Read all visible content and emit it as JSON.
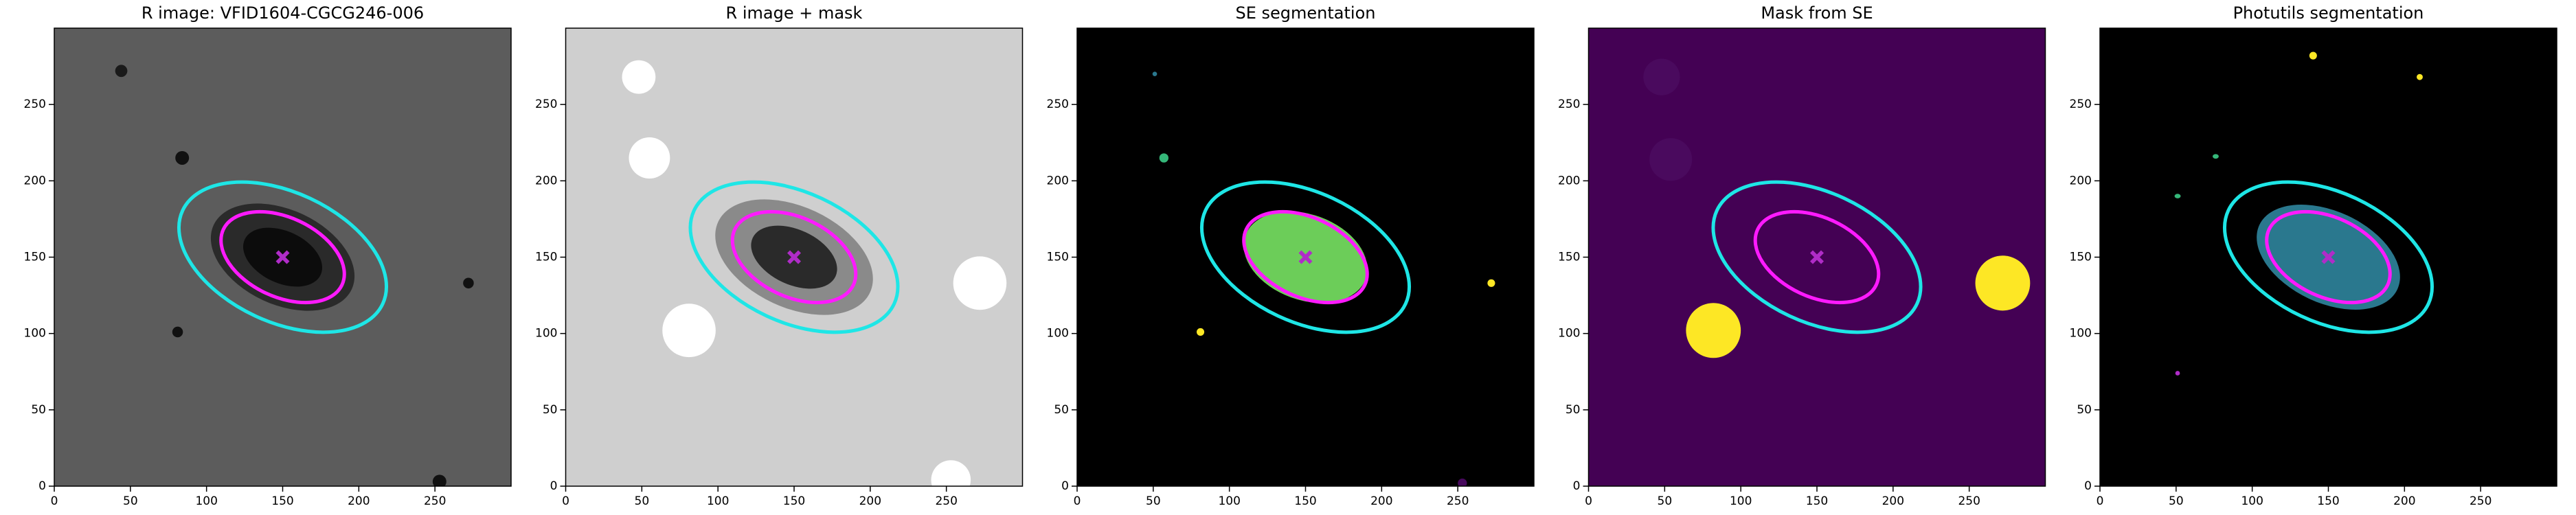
{
  "chart_data": [
    {
      "type": "image",
      "title": "R image: VFID1604-CGCG246-006",
      "background": "#5c5c5c",
      "xlim": [
        0,
        300
      ],
      "ylim": [
        0,
        300
      ],
      "xticks": [
        0,
        50,
        100,
        150,
        200,
        250
      ],
      "yticks": [
        0,
        50,
        100,
        150,
        200,
        250
      ],
      "blobs": [
        {
          "x": 150,
          "y": 150,
          "width": 100,
          "height": 62,
          "angle": -25,
          "color": "#2a2a2a"
        },
        {
          "x": 150,
          "y": 150,
          "width": 55,
          "height": 34,
          "angle": -25,
          "color": "#0c0c0c"
        },
        {
          "x": 84,
          "y": 215,
          "width": 9,
          "height": 9,
          "angle": 0,
          "color": "#111111"
        },
        {
          "x": 44,
          "y": 272,
          "width": 8,
          "height": 8,
          "angle": 0,
          "color": "#1a1a1a"
        },
        {
          "x": 81,
          "y": 101,
          "width": 7,
          "height": 7,
          "angle": 0,
          "color": "#111111"
        },
        {
          "x": 272,
          "y": 133,
          "width": 7,
          "height": 7,
          "angle": 0,
          "color": "#111111"
        },
        {
          "x": 253,
          "y": 3,
          "width": 9,
          "height": 9,
          "angle": 0,
          "color": "#111111"
        }
      ],
      "ellipses": [
        {
          "x": 150,
          "y": 150,
          "width": 145,
          "height": 85,
          "angle": -25,
          "color": "#1ee6e6"
        },
        {
          "x": 150,
          "y": 150,
          "width": 86,
          "height": 52,
          "angle": -25,
          "color": "#ff1aff"
        }
      ],
      "marker": {
        "x": 150,
        "y": 150,
        "color": "#b02cc8"
      }
    },
    {
      "type": "image",
      "title": "R image + mask",
      "background": "#cfcfcf",
      "xlim": [
        0,
        300
      ],
      "ylim": [
        0,
        300
      ],
      "xticks": [
        0,
        50,
        100,
        150,
        200,
        250
      ],
      "yticks": [
        0,
        50,
        100,
        150,
        200,
        250
      ],
      "blobs": [
        {
          "x": 150,
          "y": 150,
          "width": 110,
          "height": 66,
          "angle": -25,
          "color": "#8a8a8a"
        },
        {
          "x": 150,
          "y": 150,
          "width": 60,
          "height": 36,
          "angle": -25,
          "color": "#2a2a2a"
        },
        {
          "x": 48,
          "y": 268,
          "width": 22,
          "height": 22,
          "angle": 0,
          "color": "#ffffff"
        },
        {
          "x": 55,
          "y": 215,
          "width": 27,
          "height": 27,
          "angle": 0,
          "color": "#ffffff"
        },
        {
          "x": 81,
          "y": 102,
          "width": 35,
          "height": 35,
          "angle": 0,
          "color": "#ffffff"
        },
        {
          "x": 272,
          "y": 133,
          "width": 35,
          "height": 35,
          "angle": 0,
          "color": "#ffffff"
        },
        {
          "x": 253,
          "y": 4,
          "width": 26,
          "height": 26,
          "angle": 0,
          "color": "#ffffff"
        }
      ],
      "ellipses": [
        {
          "x": 150,
          "y": 150,
          "width": 145,
          "height": 85,
          "angle": -25,
          "color": "#1ee6e6"
        },
        {
          "x": 150,
          "y": 150,
          "width": 86,
          "height": 52,
          "angle": -25,
          "color": "#ff1aff"
        }
      ],
      "marker": {
        "x": 150,
        "y": 150,
        "color": "#b02cc8"
      }
    },
    {
      "type": "image",
      "title": "SE segmentation",
      "background": "#000000",
      "xlim": [
        0,
        300
      ],
      "ylim": [
        0,
        300
      ],
      "xticks": [
        0,
        50,
        100,
        150,
        200,
        250
      ],
      "yticks": [
        0,
        50,
        100,
        150,
        200,
        250
      ],
      "blobs": [
        {
          "x": 150,
          "y": 150,
          "width": 84,
          "height": 56,
          "angle": -20,
          "color": "#6ccd59"
        },
        {
          "x": 57,
          "y": 215,
          "width": 6,
          "height": 6,
          "angle": 0,
          "color": "#35b779"
        },
        {
          "x": 81,
          "y": 101,
          "width": 5,
          "height": 5,
          "angle": 0,
          "color": "#fde725"
        },
        {
          "x": 272,
          "y": 133,
          "width": 5,
          "height": 5,
          "angle": 0,
          "color": "#fde725"
        },
        {
          "x": 51,
          "y": 270,
          "width": 3,
          "height": 3,
          "angle": 0,
          "color": "#2a788e"
        },
        {
          "x": 253,
          "y": 2,
          "width": 6,
          "height": 6,
          "angle": 0,
          "color": "#46085c"
        }
      ],
      "ellipses": [
        {
          "x": 150,
          "y": 150,
          "width": 145,
          "height": 85,
          "angle": -25,
          "color": "#1ee6e6"
        },
        {
          "x": 150,
          "y": 150,
          "width": 86,
          "height": 52,
          "angle": -25,
          "color": "#ff1aff"
        }
      ],
      "marker": {
        "x": 150,
        "y": 150,
        "color": "#b02cc8"
      }
    },
    {
      "type": "image",
      "title": "Mask from SE",
      "background": "#440154",
      "xlim": [
        0,
        300
      ],
      "ylim": [
        0,
        300
      ],
      "xticks": [
        0,
        50,
        100,
        150,
        200,
        250
      ],
      "yticks": [
        0,
        50,
        100,
        150,
        200,
        250
      ],
      "blobs": [
        {
          "x": 48,
          "y": 268,
          "width": 24,
          "height": 24,
          "angle": 0,
          "color": "#4a0a5e"
        },
        {
          "x": 54,
          "y": 214,
          "width": 28,
          "height": 28,
          "angle": 0,
          "color": "#4a0a5e"
        },
        {
          "x": 82,
          "y": 102,
          "width": 36,
          "height": 36,
          "angle": 0,
          "color": "#fde725"
        },
        {
          "x": 272,
          "y": 133,
          "width": 36,
          "height": 36,
          "angle": 0,
          "color": "#fde725"
        }
      ],
      "ellipses": [
        {
          "x": 150,
          "y": 150,
          "width": 145,
          "height": 85,
          "angle": -25,
          "color": "#1ee6e6"
        },
        {
          "x": 150,
          "y": 150,
          "width": 86,
          "height": 52,
          "angle": -25,
          "color": "#ff1aff"
        }
      ],
      "marker": {
        "x": 150,
        "y": 150,
        "color": "#b02cc8"
      }
    },
    {
      "type": "image",
      "title": "Photutils segmentation",
      "background": "#000000",
      "xlim": [
        0,
        300
      ],
      "ylim": [
        0,
        300
      ],
      "xticks": [
        0,
        50,
        100,
        150,
        200,
        250
      ],
      "yticks": [
        0,
        50,
        100,
        150,
        200,
        250
      ],
      "blobs": [
        {
          "x": 150,
          "y": 150,
          "width": 100,
          "height": 60,
          "angle": -25,
          "color": "#2a788e"
        },
        {
          "x": 140,
          "y": 282,
          "width": 5,
          "height": 5,
          "angle": 0,
          "color": "#fde725"
        },
        {
          "x": 210,
          "y": 268,
          "width": 4,
          "height": 4,
          "angle": 0,
          "color": "#fde725"
        },
        {
          "x": 76,
          "y": 216,
          "width": 4,
          "height": 3,
          "angle": 0,
          "color": "#35b779"
        },
        {
          "x": 51,
          "y": 190,
          "width": 4,
          "height": 3,
          "angle": 0,
          "color": "#35b779"
        },
        {
          "x": 51,
          "y": 74,
          "width": 3,
          "height": 3,
          "angle": 0,
          "color": "#b02cc8"
        }
      ],
      "ellipses": [
        {
          "x": 150,
          "y": 150,
          "width": 145,
          "height": 85,
          "angle": -25,
          "color": "#1ee6e6"
        },
        {
          "x": 150,
          "y": 150,
          "width": 86,
          "height": 52,
          "angle": -25,
          "color": "#ff1aff"
        }
      ],
      "marker": {
        "x": 150,
        "y": 150,
        "color": "#b02cc8"
      }
    }
  ]
}
